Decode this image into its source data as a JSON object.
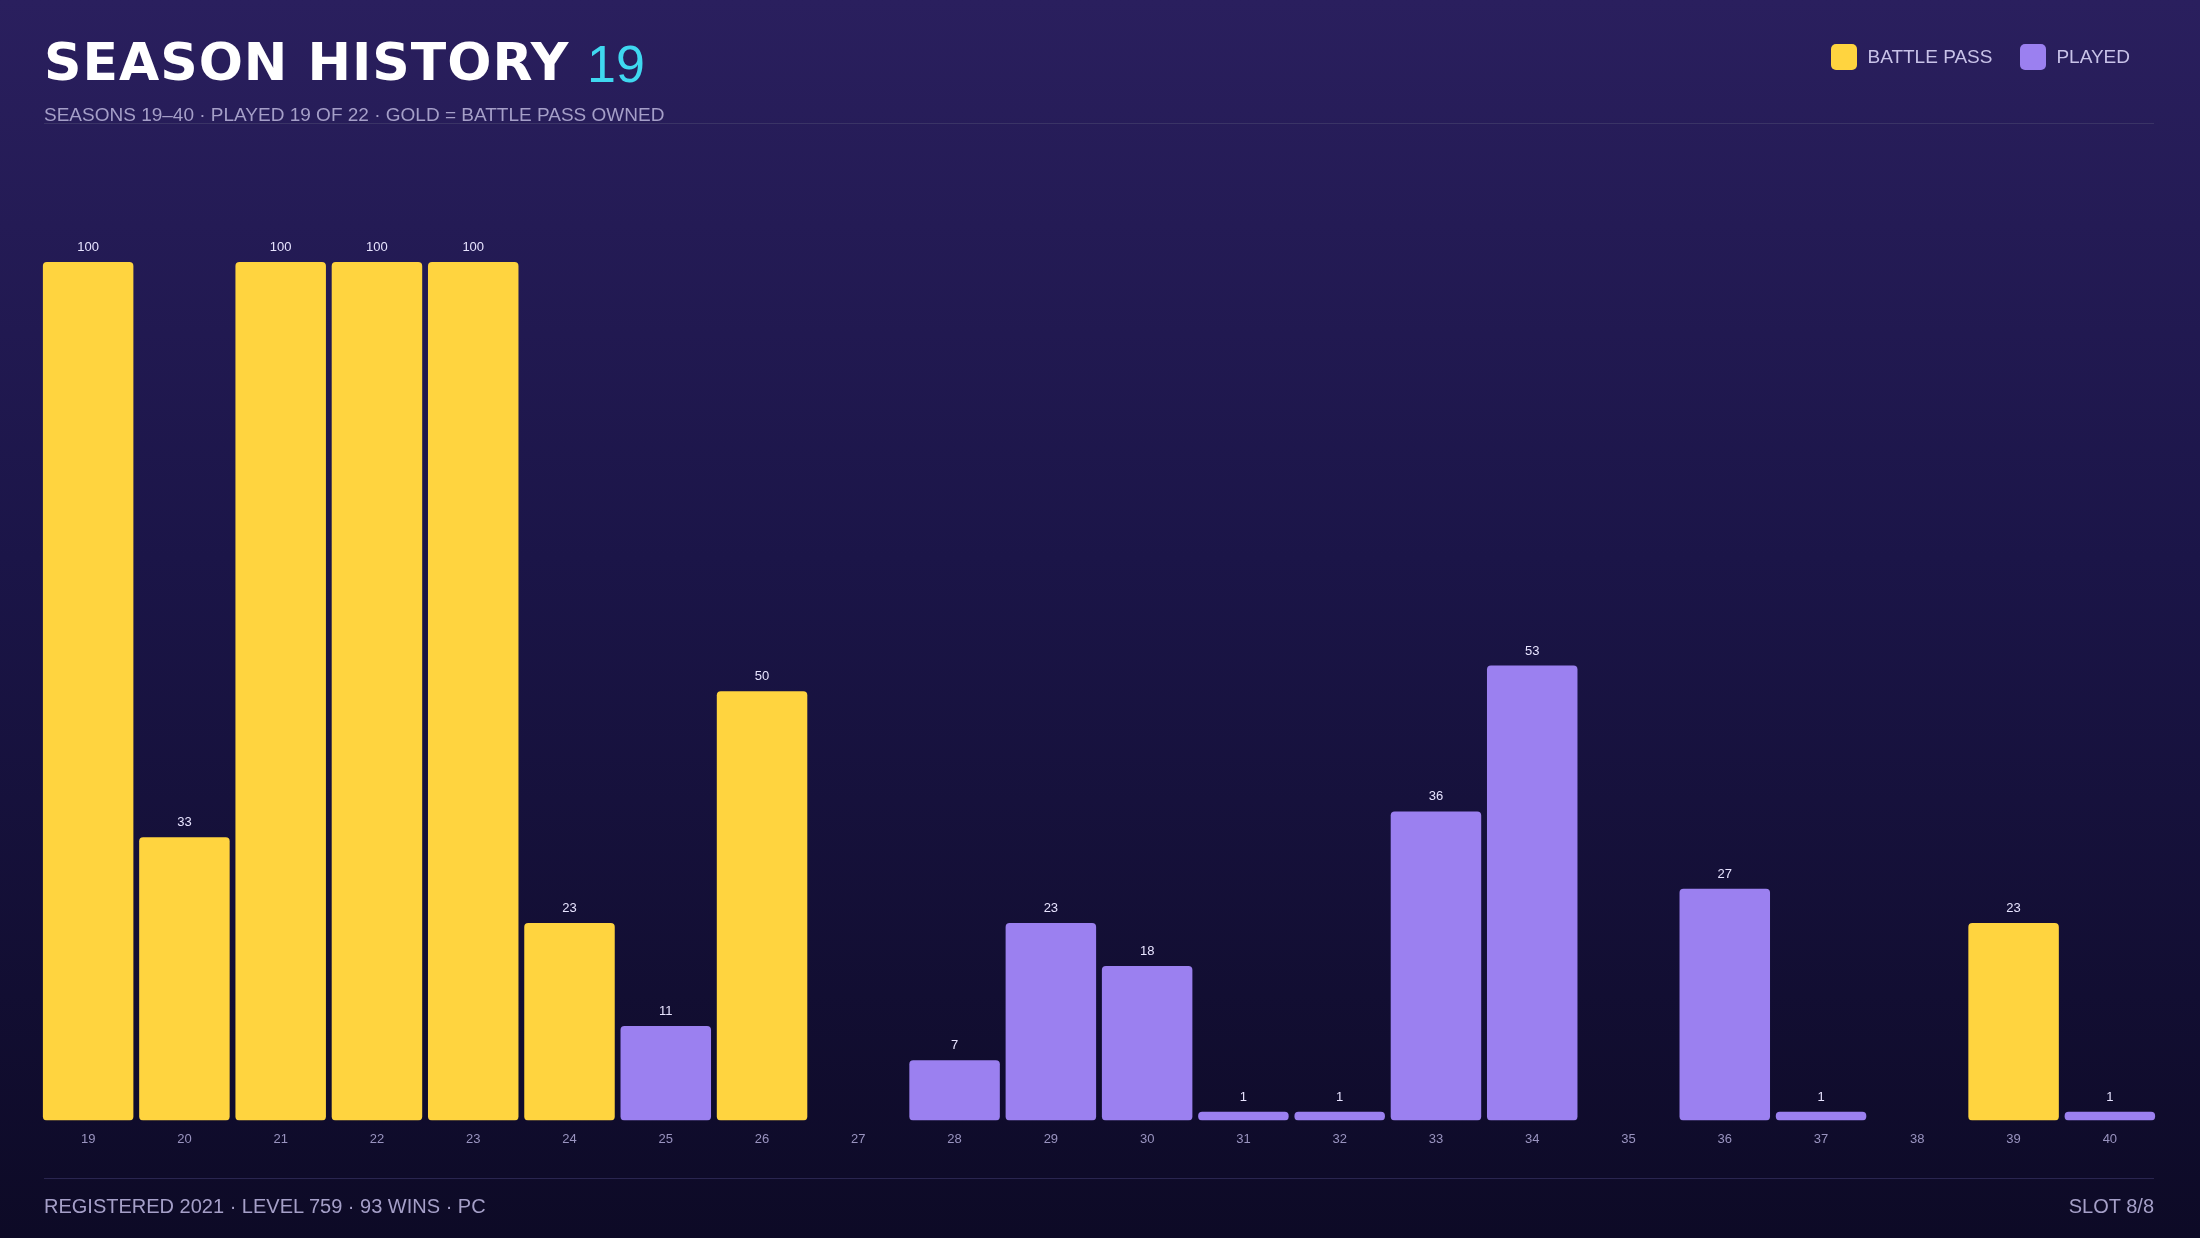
{
  "chart_data": {
    "type": "bar",
    "title": "SEASON HISTORY",
    "subtitle": "SEASONS 19–40 · PLAYED 19 OF 22 · GOLD = BATTLE PASS OWNED",
    "categories": [
      "19",
      "20",
      "21",
      "22",
      "23",
      "24",
      "25",
      "26",
      "27",
      "28",
      "29",
      "30",
      "31",
      "32",
      "33",
      "34",
      "35",
      "36",
      "37",
      "38",
      "39",
      "40"
    ],
    "stacked": true,
    "ylim": [
      0,
      100
    ],
    "tick_labels": "x",
    "legend": "top right",
    "series": [
      {
        "name": "BATTLE PASS",
        "color": "#ffd43f",
        "values": [
          100,
          33,
          100,
          100,
          100,
          23,
          null,
          50,
          null,
          null,
          null,
          null,
          null,
          null,
          null,
          null,
          null,
          null,
          null,
          null,
          23,
          null
        ],
        "value_labels": [
          "100",
          "33",
          "100",
          "100",
          "100",
          "23",
          null,
          "50",
          null,
          null,
          null,
          null,
          null,
          null,
          null,
          null,
          null,
          null,
          null,
          null,
          "23",
          null
        ]
      },
      {
        "name": "PLAYED",
        "color": "#9b80f0",
        "values": [
          null,
          null,
          null,
          null,
          null,
          null,
          11,
          null,
          null,
          7,
          23,
          18,
          1,
          1,
          36,
          53,
          null,
          27,
          1,
          null,
          null,
          1
        ],
        "value_labels": [
          null,
          null,
          null,
          null,
          null,
          null,
          "11",
          null,
          null,
          "7",
          "23",
          "18",
          "1",
          "1",
          "36",
          "53",
          null,
          "27",
          "1",
          null,
          null,
          "1"
        ]
      },
      {
        "color": "#3a3452",
        "values": [
          null,
          null,
          null,
          null,
          null,
          null,
          null,
          null,
          0,
          null,
          null,
          null,
          null,
          null,
          null,
          null,
          0,
          null,
          null,
          0,
          null,
          null
        ],
        "value_labels": [
          null,
          null,
          null,
          null,
          null,
          null,
          null,
          null,
          null,
          null,
          null,
          null,
          null,
          null,
          null,
          null,
          null,
          null,
          null,
          null,
          null,
          null
        ]
      }
    ],
    "annotations": [
      "19",
      "REGISTERED 2021 · LEVEL 759 · 93 WINS · PC",
      "SLOT 8/8"
    ]
  }
}
